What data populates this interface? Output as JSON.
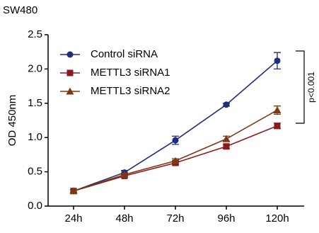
{
  "chart_data": {
    "type": "line",
    "title": "SW480",
    "ylabel": "OD 450nm",
    "categories": [
      "24h",
      "48h",
      "72h",
      "96h",
      "120h"
    ],
    "series": [
      {
        "name": "Control siRNA",
        "color": "#1f2d7a",
        "marker": "circle",
        "values": [
          0.22,
          0.49,
          0.96,
          1.48,
          2.12
        ],
        "errors": [
          0.02,
          0.03,
          0.06,
          0.02,
          0.12
        ]
      },
      {
        "name": "METTL3 siRNA1",
        "color": "#8b1a1f",
        "marker": "square",
        "values": [
          0.22,
          0.44,
          0.63,
          0.87,
          1.17
        ],
        "errors": [
          0.02,
          0.02,
          0.03,
          0.03,
          0.04
        ]
      },
      {
        "name": "METTL3 siRNA2",
        "color": "#7a3a14",
        "marker": "triangle",
        "values": [
          0.22,
          0.46,
          0.66,
          0.98,
          1.4
        ],
        "errors": [
          0.02,
          0.02,
          0.03,
          0.04,
          0.06
        ]
      }
    ],
    "ylim": [
      0,
      2.5
    ],
    "yticks": [
      {
        "value": 0,
        "label": "0.0"
      },
      0.5,
      {
        "value": 1,
        "label": "1.0"
      },
      1.5,
      {
        "value": 2,
        "label": "2.0"
      },
      2.5
    ],
    "annotation": "p<0.001"
  }
}
